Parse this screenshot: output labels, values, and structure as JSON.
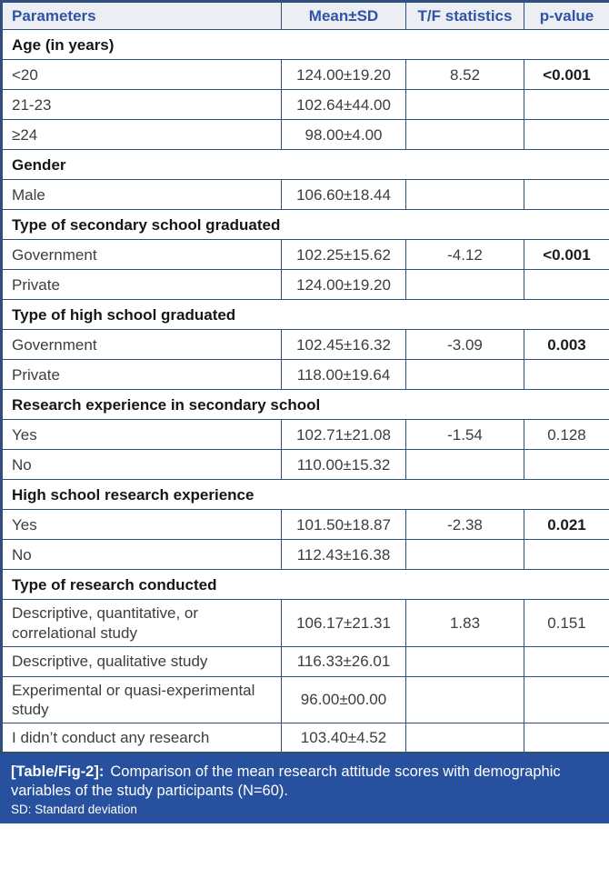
{
  "colors": {
    "table_border": "#2f4f7d",
    "header_bg": "#ededf4",
    "header_text": "#2d55a7",
    "caption_bg": "#27509e",
    "caption_text": "#ffffff",
    "body_text": "#3d3d3d"
  },
  "table": {
    "columns": [
      "Parameters",
      "Mean±SD",
      "T/F statistics",
      "p-value"
    ],
    "rows": [
      {
        "type": "section",
        "label": "Age (in years)"
      },
      {
        "type": "data",
        "parameter": "<20",
        "mean_sd": "124.00±19.20",
        "statistic": "8.52",
        "p_value": "<0.001",
        "p_bold": true
      },
      {
        "type": "data",
        "parameter": "21-23",
        "mean_sd": "102.64±44.00",
        "statistic": "",
        "p_value": "",
        "p_bold": false
      },
      {
        "type": "data",
        "parameter": "≥24",
        "mean_sd": "98.00±4.00",
        "statistic": "",
        "p_value": "",
        "p_bold": false
      },
      {
        "type": "section",
        "label": "Gender"
      },
      {
        "type": "data",
        "parameter": "Male",
        "mean_sd": "106.60±18.44",
        "statistic": "",
        "p_value": "",
        "p_bold": false
      },
      {
        "type": "section",
        "label": "Type of secondary school graduated"
      },
      {
        "type": "data",
        "parameter": "Government",
        "mean_sd": "102.25±15.62",
        "statistic": "-4.12",
        "p_value": "<0.001",
        "p_bold": true
      },
      {
        "type": "data",
        "parameter": "Private",
        "mean_sd": "124.00±19.20",
        "statistic": "",
        "p_value": "",
        "p_bold": false
      },
      {
        "type": "section",
        "label": "Type of high school graduated"
      },
      {
        "type": "data",
        "parameter": "Government",
        "mean_sd": "102.45±16.32",
        "statistic": "-3.09",
        "p_value": "0.003",
        "p_bold": true
      },
      {
        "type": "data",
        "parameter": "Private",
        "mean_sd": "118.00±19.64",
        "statistic": "",
        "p_value": "",
        "p_bold": false
      },
      {
        "type": "section",
        "label": "Research experience in secondary school"
      },
      {
        "type": "data",
        "parameter": "Yes",
        "mean_sd": "102.71±21.08",
        "statistic": "-1.54",
        "p_value": "0.128",
        "p_bold": false
      },
      {
        "type": "data",
        "parameter": "No",
        "mean_sd": "110.00±15.32",
        "statistic": "",
        "p_value": "",
        "p_bold": false
      },
      {
        "type": "section",
        "label": "High school research experience"
      },
      {
        "type": "data",
        "parameter": "Yes",
        "mean_sd": "101.50±18.87",
        "statistic": "-2.38",
        "p_value": "0.021",
        "p_bold": true
      },
      {
        "type": "data",
        "parameter": "No",
        "mean_sd": "112.43±16.38",
        "statistic": "",
        "p_value": "",
        "p_bold": false
      },
      {
        "type": "section",
        "label": "Type of research conducted"
      },
      {
        "type": "data",
        "parameter": "Descriptive, quantitative, or correlational study",
        "mean_sd": "106.17±21.31",
        "statistic": "1.83",
        "p_value": "0.151",
        "p_bold": false
      },
      {
        "type": "data",
        "parameter": "Descriptive, qualitative study",
        "mean_sd": "116.33±26.01",
        "statistic": "",
        "p_value": "",
        "p_bold": false
      },
      {
        "type": "data",
        "parameter": "Experimental or quasi-experimental study",
        "mean_sd": "96.00±00.00",
        "statistic": "",
        "p_value": "",
        "p_bold": false
      },
      {
        "type": "data",
        "parameter": "I didn’t conduct any research",
        "mean_sd": "103.40±4.52",
        "statistic": "",
        "p_value": "",
        "p_bold": false
      }
    ]
  },
  "caption": {
    "label": "[Table/Fig-2]:",
    "text": "Comparison of the mean research attitude scores with demographic variables of the study participants (N=60).",
    "footnote": "SD: Standard deviation"
  }
}
